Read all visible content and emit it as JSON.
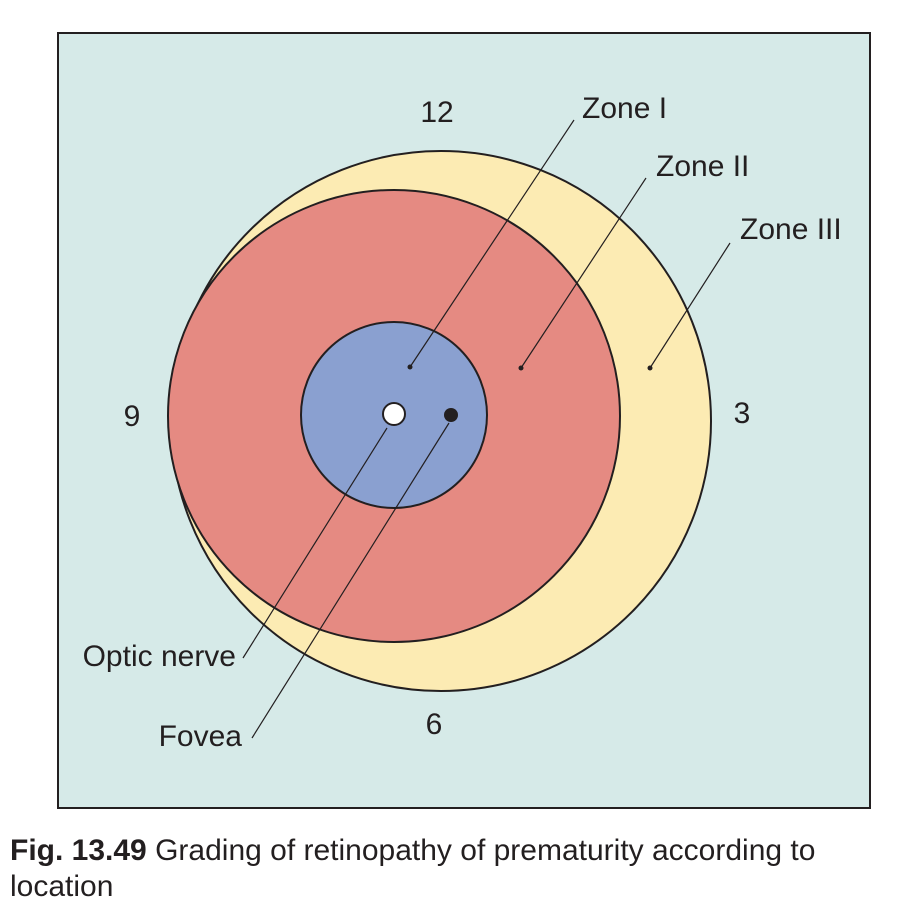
{
  "diagram": {
    "clock_labels": {
      "twelve": "12",
      "three": "3",
      "six": "6",
      "nine": "9"
    },
    "zones": {
      "zone1": "Zone I",
      "zone2": "Zone II",
      "zone3": "Zone III"
    },
    "structures": {
      "optic_nerve": "Optic nerve",
      "fovea": "Fovea"
    },
    "colors": {
      "background": "#d6eae8",
      "zone3_fill": "#fcebb3",
      "zone2_fill": "#e58a82",
      "zone1_fill": "#8aa0d0",
      "stroke": "#231f20"
    }
  },
  "caption": {
    "figure_number": "Fig. 13.49",
    "text": "Grading of retinopathy of prematurity according to location"
  }
}
